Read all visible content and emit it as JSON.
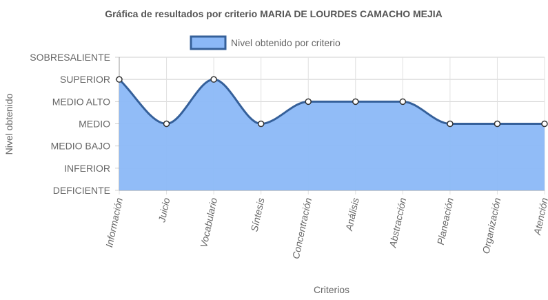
{
  "chart_data": {
    "type": "area",
    "title": "Gráfica de resultados por criterio MARIA DE LOURDES CAMACHO MEJIA",
    "xlabel": "Criterios",
    "ylabel": "Nivel obtenido",
    "y_levels": [
      "DEFICIENTE",
      "INFERIOR",
      "MEDIO BAJO",
      "MEDIO",
      "MEDIO ALTO",
      "SUPERIOR",
      "SOBRESALIENTE"
    ],
    "categories": [
      "Información",
      "Juicio",
      "Vocabulario",
      "Síntesis",
      "Concentración",
      "Análisis",
      "Abstracción",
      "Planeación",
      "Organización",
      "Atención"
    ],
    "series": [
      {
        "name": "Nivel obtenido por criterio",
        "values": [
          "SUPERIOR",
          "MEDIO",
          "SUPERIOR",
          "MEDIO",
          "MEDIO ALTO",
          "MEDIO ALTO",
          "MEDIO ALTO",
          "MEDIO",
          "MEDIO",
          "MEDIO"
        ],
        "fill_color": "#8BB8F7",
        "line_color": "#35609A"
      }
    ],
    "legend_position": "top",
    "grid": true
  }
}
